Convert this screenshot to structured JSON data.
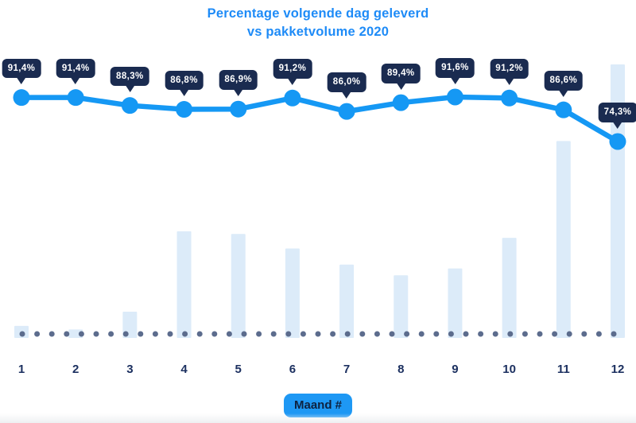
{
  "title": {
    "line1": "Percentage volgende dag geleverd",
    "line2": "vs pakketvolume 2020"
  },
  "x_axis": {
    "title_badge": "Maand #",
    "tick_labels": [
      "1",
      "2",
      "3",
      "4",
      "5",
      "6",
      "7",
      "8",
      "9",
      "10",
      "11",
      "12"
    ]
  },
  "colors": {
    "accent_blue": "#1598f4",
    "title_blue": "#1e8bf7",
    "badge_navy": "#1a2b50",
    "axis_label_navy": "#1c3060",
    "bar_light_blue": "#dcebf9",
    "dot_slate": "#5c6c8d",
    "xaxis_badge_text": "#0e2240"
  },
  "chart_data": {
    "type": "combo",
    "title": "Percentage volgende dag geleverd vs pakketvolume 2020",
    "xlabel": "Maand #",
    "categories": [
      "1",
      "2",
      "3",
      "4",
      "5",
      "6",
      "7",
      "8",
      "9",
      "10",
      "11",
      "12"
    ],
    "value_axis": "none",
    "legend": "none",
    "grid": "none, dotted baseline only",
    "series": [
      {
        "name": "Percentage volgende dag geleverd",
        "type": "line",
        "unit": "%",
        "values": [
          91.4,
          91.4,
          88.3,
          86.8,
          86.9,
          91.2,
          86.0,
          89.4,
          91.6,
          91.2,
          86.6,
          74.3
        ],
        "point_labels": [
          "91,4%",
          "91,4%",
          "88,3%",
          "86,8%",
          "86,9%",
          "91,2%",
          "86,0%",
          "89,4%",
          "91,6%",
          "91,2%",
          "86,6%",
          "74,3%"
        ]
      },
      {
        "name": "Pakketvolume 2020",
        "type": "bar",
        "unit": "relative volume, max month = 100 (no value axis shown)",
        "values": [
          4.4,
          3.1,
          9.6,
          39.0,
          38.0,
          32.7,
          26.8,
          22.9,
          25.4,
          36.6,
          72.0,
          100.0
        ]
      }
    ]
  }
}
